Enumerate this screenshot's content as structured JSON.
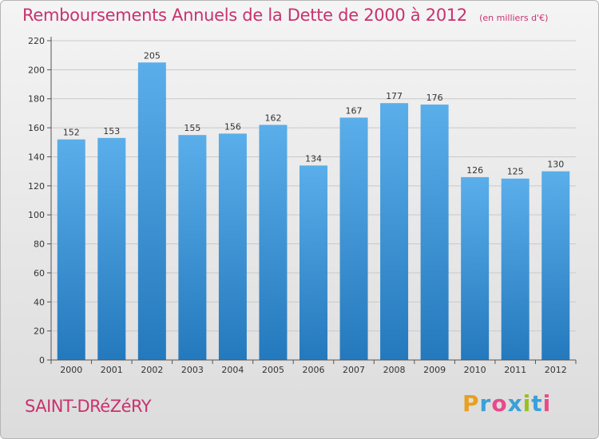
{
  "title": "Remboursements Annuels de la Dette de 2000 à 2012",
  "subtitle": "(en milliers d'€)",
  "commune": "SAINT-DRéZéRY",
  "brand": {
    "letters": [
      "P",
      "r",
      "o",
      "x",
      "i",
      "t",
      "i"
    ],
    "colors": [
      "#e8a020",
      "#3aa0d8",
      "#e84a8a",
      "#3aa0d8",
      "#98c020",
      "#3aa0d8",
      "#e84a8a"
    ]
  },
  "colors": {
    "bar_top": "#5aaeea",
    "bar_bottom": "#2479bd",
    "title": "#c8326e"
  },
  "chart_data": {
    "type": "bar",
    "categories": [
      "2000",
      "2001",
      "2002",
      "2003",
      "2004",
      "2005",
      "2006",
      "2007",
      "2008",
      "2009",
      "2010",
      "2011",
      "2012"
    ],
    "values": [
      152,
      153,
      205,
      155,
      156,
      162,
      134,
      167,
      177,
      176,
      126,
      125,
      130
    ],
    "yticks": [
      0,
      20,
      40,
      60,
      80,
      100,
      120,
      140,
      160,
      180,
      200,
      220
    ],
    "ylim": [
      0,
      220
    ],
    "grid": true,
    "data_labels": true
  }
}
